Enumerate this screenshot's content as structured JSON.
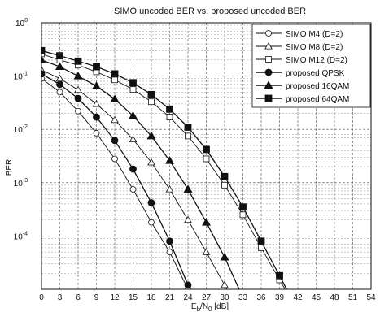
{
  "chart_data": {
    "type": "line",
    "title": "SIMO uncoded BER vs. proposed uncoded BER",
    "xlabel": "E",
    "xlabel_sub_b": "b",
    "xlabel_mid": "/N",
    "xlabel_sub_0": "0",
    "xlabel_unit": " [dB]",
    "ylabel": "BER",
    "xlim": [
      0,
      54
    ],
    "ylim": [
      1e-05,
      1
    ],
    "yscale": "log",
    "grid": true,
    "legend_position": "top-right",
    "x_ticks": [
      "0",
      "3",
      "6",
      "9",
      "12",
      "15",
      "18",
      "21",
      "24",
      "27",
      "30",
      "33",
      "36",
      "39",
      "42",
      "45",
      "48",
      "51",
      "54"
    ],
    "y_ticks": [
      {
        "base": "10",
        "exp": "0",
        "value": 1
      },
      {
        "base": "10",
        "exp": "-1",
        "value": 0.1
      },
      {
        "base": "10",
        "exp": "-2",
        "value": 0.01
      },
      {
        "base": "10",
        "exp": "-3",
        "value": 0.001
      },
      {
        "base": "10",
        "exp": "-4",
        "value": 0.0001
      }
    ],
    "series": [
      {
        "name": "SIMO M4 (D=2)",
        "marker": "circle",
        "filled": false,
        "x": [
          0,
          3,
          6,
          9,
          12,
          15,
          18,
          21,
          24
        ],
        "y": [
          0.09,
          0.05,
          0.022,
          0.0085,
          0.0028,
          0.00075,
          0.00018,
          5e-05,
          1e-05
        ]
      },
      {
        "name": "SIMO M8 (D=2)",
        "marker": "triangle",
        "filled": false,
        "x": [
          0,
          3,
          6,
          9,
          12,
          15,
          18,
          21,
          24,
          27,
          30,
          33
        ],
        "y": [
          0.13,
          0.09,
          0.055,
          0.03,
          0.015,
          0.0065,
          0.0024,
          0.00075,
          0.0002,
          5e-05,
          1.2e-05,
          3e-06
        ]
      },
      {
        "name": "SIMO M12 (D=2)",
        "marker": "square",
        "filled": false,
        "x": [
          0,
          3,
          6,
          9,
          12,
          15,
          18,
          21,
          24,
          27,
          30,
          33,
          36,
          39,
          42
        ],
        "y": [
          0.26,
          0.2,
          0.16,
          0.12,
          0.085,
          0.056,
          0.033,
          0.017,
          0.0075,
          0.0028,
          0.0009,
          0.00025,
          6e-05,
          1.5e-05,
          4e-06
        ]
      },
      {
        "name": "proposed QPSK",
        "marker": "circle",
        "filled": true,
        "x": [
          0,
          3,
          6,
          9,
          12,
          15,
          18,
          21,
          24
        ],
        "y": [
          0.11,
          0.07,
          0.038,
          0.017,
          0.0062,
          0.0018,
          0.00042,
          8e-05,
          1.2e-05
        ]
      },
      {
        "name": "proposed 16QAM",
        "marker": "triangle",
        "filled": true,
        "x": [
          0,
          3,
          6,
          9,
          12,
          15,
          18,
          21,
          24,
          27,
          30,
          33
        ],
        "y": [
          0.2,
          0.15,
          0.1,
          0.065,
          0.037,
          0.018,
          0.0075,
          0.0026,
          0.00075,
          0.00018,
          4e-05,
          7e-06
        ]
      },
      {
        "name": "proposed 64QAM",
        "marker": "square",
        "filled": true,
        "x": [
          0,
          3,
          6,
          9,
          12,
          15,
          18,
          21,
          24,
          27,
          30,
          33,
          36,
          39,
          42
        ],
        "y": [
          0.3,
          0.24,
          0.19,
          0.15,
          0.11,
          0.075,
          0.045,
          0.024,
          0.011,
          0.0042,
          0.0013,
          0.00035,
          8e-05,
          1.8e-05,
          4e-06
        ]
      }
    ]
  }
}
